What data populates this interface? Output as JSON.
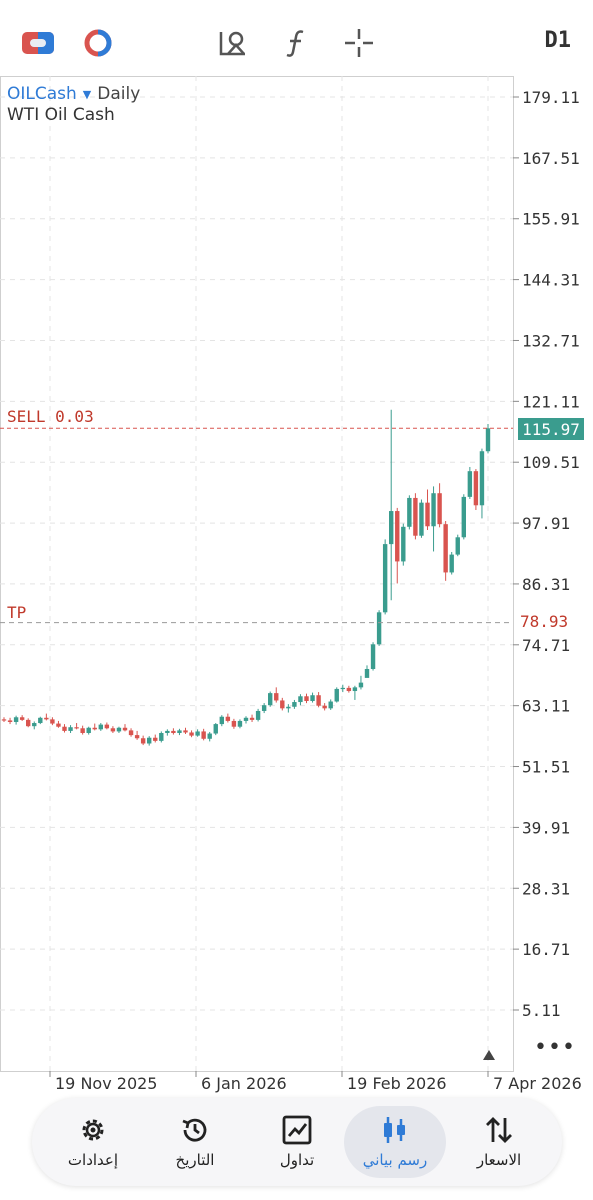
{
  "toolbar": {
    "timeframe": "D1",
    "icons": [
      "trade-toggle-icon",
      "indicator-icon",
      "objects-icon",
      "function-icon",
      "crosshair-icon"
    ]
  },
  "symbol": {
    "name": "OILCash",
    "timeframe": "Daily",
    "description": "WTI Oil Cash"
  },
  "lines": {
    "sell_label": "SELL 0.03",
    "sell_price": "115.97",
    "tp_label": "TP",
    "tp_price": "78.93"
  },
  "colors": {
    "bull": "#3a9c8e",
    "bear": "#d9544f",
    "accent": "#2f7bd6",
    "sell_line": "#d9544f",
    "tp_line": "#999999"
  },
  "chart_data": {
    "type": "candlestick",
    "y_ticks": [
      179.11,
      167.51,
      155.91,
      144.31,
      132.71,
      121.11,
      109.51,
      97.91,
      86.31,
      74.71,
      63.11,
      51.51,
      39.91,
      28.31,
      16.71,
      5.11
    ],
    "x_ticks": [
      "19 Nov 2025",
      "6 Jan 2026",
      "19 Feb 2026",
      "7 Apr 2026"
    ],
    "grid": true,
    "candles": [
      [
        60.5,
        60.9,
        60.0,
        60.3
      ],
      [
        60.3,
        60.8,
        59.6,
        60.0
      ],
      [
        60.0,
        61.2,
        59.5,
        60.9
      ],
      [
        60.9,
        61.3,
        60.2,
        60.4
      ],
      [
        60.4,
        60.7,
        59.0,
        59.2
      ],
      [
        59.2,
        60.1,
        58.6,
        59.8
      ],
      [
        59.8,
        61.0,
        59.6,
        60.8
      ],
      [
        60.8,
        61.6,
        60.3,
        60.5
      ],
      [
        60.5,
        60.9,
        59.4,
        59.7
      ],
      [
        59.7,
        60.2,
        58.9,
        59.1
      ],
      [
        59.1,
        59.6,
        58.0,
        58.3
      ],
      [
        58.3,
        59.4,
        57.9,
        59.0
      ],
      [
        59.0,
        59.8,
        58.6,
        58.8
      ],
      [
        58.8,
        59.3,
        57.6,
        57.9
      ],
      [
        57.9,
        59.1,
        57.6,
        58.9
      ],
      [
        58.9,
        59.7,
        58.4,
        58.6
      ],
      [
        58.6,
        59.8,
        58.3,
        59.5
      ],
      [
        59.5,
        59.9,
        58.6,
        58.8
      ],
      [
        58.8,
        59.2,
        57.9,
        58.2
      ],
      [
        58.2,
        59.1,
        57.9,
        58.9
      ],
      [
        58.9,
        59.6,
        58.2,
        58.4
      ],
      [
        58.4,
        58.8,
        57.2,
        57.5
      ],
      [
        57.5,
        58.3,
        56.6,
        56.9
      ],
      [
        56.9,
        57.4,
        55.6,
        55.9
      ],
      [
        55.9,
        57.3,
        55.5,
        57.0
      ],
      [
        57.0,
        57.6,
        56.1,
        56.4
      ],
      [
        56.4,
        58.2,
        56.1,
        57.9
      ],
      [
        57.9,
        58.6,
        57.4,
        58.3
      ],
      [
        58.3,
        58.8,
        57.6,
        57.9
      ],
      [
        57.9,
        58.7,
        57.5,
        58.4
      ],
      [
        58.4,
        58.9,
        57.7,
        58.0
      ],
      [
        58.0,
        58.4,
        57.1,
        57.4
      ],
      [
        57.4,
        58.6,
        57.2,
        58.2
      ],
      [
        58.2,
        58.7,
        56.5,
        56.8
      ],
      [
        56.8,
        58.1,
        56.3,
        57.8
      ],
      [
        57.8,
        59.8,
        57.5,
        59.6
      ],
      [
        59.6,
        61.3,
        59.2,
        61.0
      ],
      [
        61.0,
        61.6,
        59.9,
        60.2
      ],
      [
        60.2,
        60.6,
        58.7,
        59.1
      ],
      [
        59.1,
        60.5,
        58.8,
        60.2
      ],
      [
        60.2,
        61.1,
        59.7,
        60.8
      ],
      [
        60.8,
        61.4,
        60.0,
        60.4
      ],
      [
        60.4,
        62.5,
        60.1,
        62.1
      ],
      [
        62.1,
        63.6,
        61.7,
        63.2
      ],
      [
        63.2,
        65.8,
        62.9,
        65.5
      ],
      [
        65.5,
        66.6,
        63.7,
        64.1
      ],
      [
        64.1,
        64.6,
        62.2,
        62.6
      ],
      [
        62.6,
        63.4,
        61.8,
        62.9
      ],
      [
        62.9,
        64.2,
        62.5,
        63.8
      ],
      [
        63.8,
        65.3,
        63.2,
        64.9
      ],
      [
        64.9,
        65.4,
        63.6,
        64.0
      ],
      [
        64.0,
        65.6,
        63.7,
        65.1
      ],
      [
        65.1,
        65.7,
        62.8,
        63.1
      ],
      [
        63.1,
        63.6,
        62.2,
        62.6
      ],
      [
        62.6,
        64.3,
        62.3,
        63.9
      ],
      [
        63.9,
        66.6,
        63.7,
        66.3
      ],
      [
        66.3,
        67.1,
        65.7,
        66.5
      ],
      [
        66.5,
        66.9,
        65.6,
        65.9
      ],
      [
        65.9,
        66.9,
        64.2,
        66.6
      ],
      [
        66.6,
        68.8,
        66.2,
        67.5
      ],
      [
        68.4,
        70.8,
        69.0,
        70.1
      ],
      [
        70.1,
        75.2,
        69.8,
        74.8
      ],
      [
        74.8,
        81.3,
        74.5,
        80.9
      ],
      [
        80.9,
        94.8,
        80.5,
        93.9
      ],
      [
        93.9,
        119.5,
        83.2,
        100.2
      ],
      [
        100.2,
        100.8,
        86.4,
        90.6
      ],
      [
        90.6,
        97.8,
        89.8,
        97.2
      ],
      [
        97.2,
        103.2,
        96.7,
        102.7
      ],
      [
        102.7,
        103.6,
        94.8,
        95.5
      ],
      [
        95.5,
        102.4,
        95.1,
        101.8
      ],
      [
        101.8,
        104.3,
        96.6,
        97.3
      ],
      [
        97.3,
        104.9,
        92.5,
        103.6
      ],
      [
        103.6,
        105.5,
        97.1,
        97.7
      ],
      [
        97.7,
        98.3,
        86.9,
        88.5
      ],
      [
        88.5,
        92.4,
        88.1,
        91.9
      ],
      [
        91.9,
        95.7,
        91.6,
        95.2
      ],
      [
        95.2,
        103.4,
        94.8,
        102.9
      ],
      [
        102.9,
        108.6,
        102.5,
        107.8
      ],
      [
        107.8,
        108.2,
        100.4,
        101.3
      ],
      [
        101.3,
        112.1,
        98.8,
        111.6
      ],
      [
        111.6,
        116.8,
        111.2,
        115.97
      ]
    ]
  },
  "more_label": "•••",
  "nav": {
    "items": [
      {
        "label": "إعدادات",
        "icon": "gear-icon"
      },
      {
        "label": "التاريخ",
        "icon": "history-icon"
      },
      {
        "label": "تداول",
        "icon": "trade-chart-icon"
      },
      {
        "label": "رسم بياني",
        "icon": "candles-icon"
      },
      {
        "label": "الاسعار",
        "icon": "quotes-icon"
      }
    ]
  }
}
